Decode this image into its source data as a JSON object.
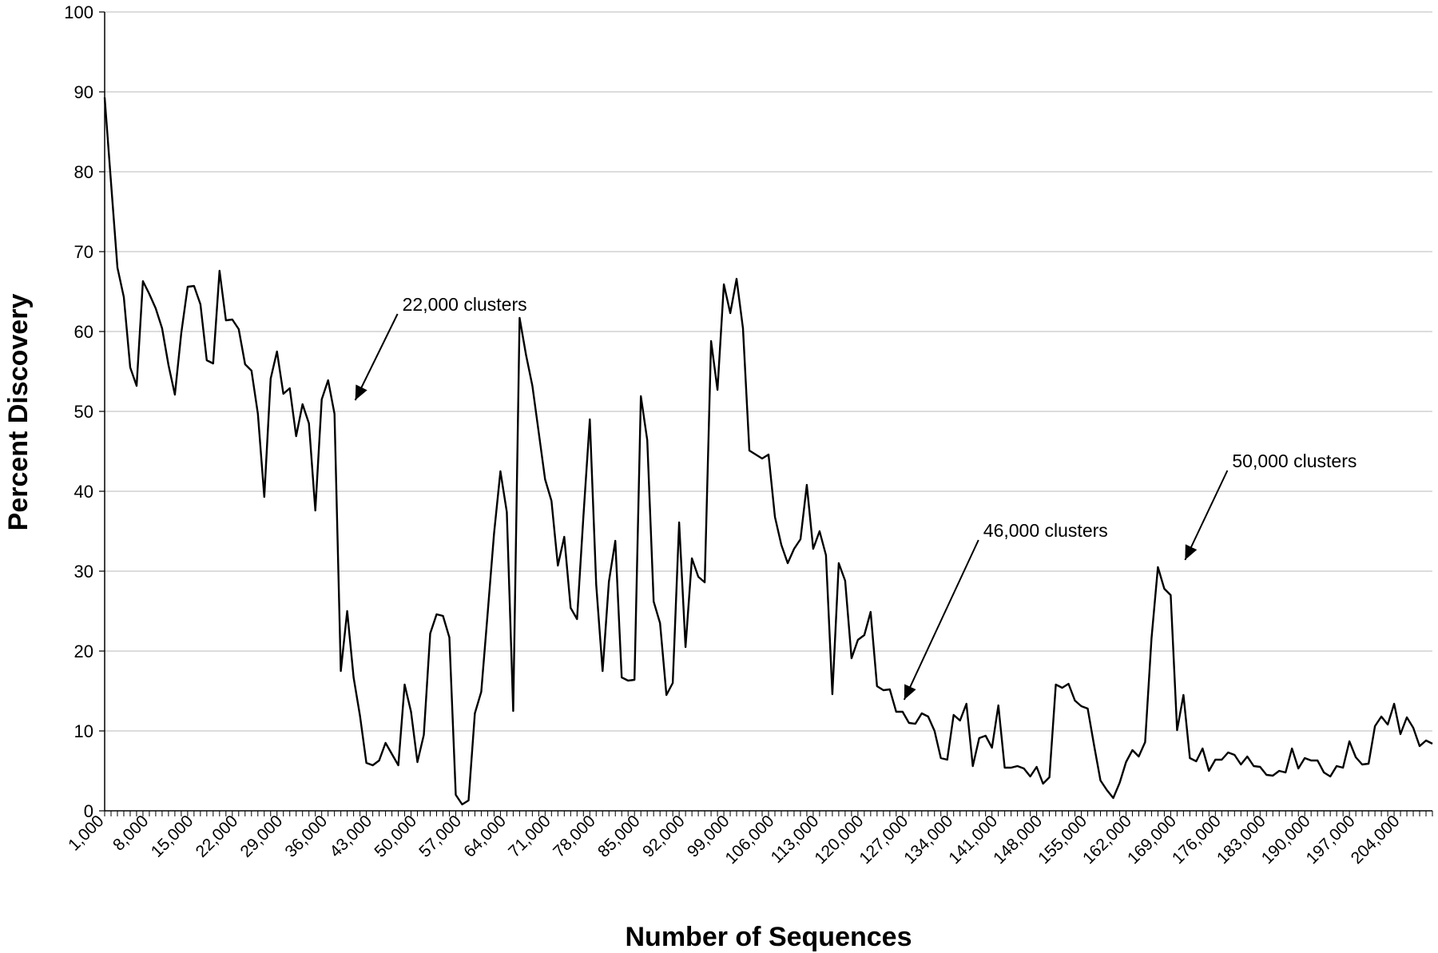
{
  "chart_data": {
    "type": "line",
    "xlabel": "Number of Sequences",
    "ylabel": "Percent Discovery",
    "ylim": [
      0,
      100
    ],
    "yticks": [
      0,
      10,
      20,
      30,
      40,
      50,
      60,
      70,
      80,
      90,
      100
    ],
    "x_start": 1000,
    "x_step": 1000,
    "x_count": 209,
    "xtick_labels": [
      "1,000",
      "8,000",
      "15,000",
      "22,000",
      "29,000",
      "36,000",
      "43,000",
      "50,000",
      "57,000",
      "64,000",
      "71,000",
      "78,000",
      "85,000",
      "92,000",
      "99,000",
      "106,000",
      "113,000",
      "120,000",
      "127,000",
      "134,000",
      "141,000",
      "148,000",
      "155,000",
      "162,000",
      "169,000",
      "176,000",
      "183,000",
      "190,000",
      "197,000",
      "204,000"
    ],
    "grid": "horizontal",
    "series": [
      {
        "values": [
          89.3,
          78.6,
          68,
          64.3,
          55.5,
          53.2,
          66.3,
          64.7,
          62.9,
          60.4,
          55.8,
          52.1,
          59.8,
          65.6,
          65.7,
          63.4,
          56.4,
          56,
          67.6,
          61.4,
          61.5,
          60.3,
          55.9,
          55.1,
          49.7,
          39.3,
          54.1,
          57.5,
          52.2,
          52.9,
          46.9,
          50.9,
          48.5,
          37.6,
          51.5,
          53.9,
          49.7,
          17.5,
          25,
          16.7,
          11.9,
          6,
          5.7,
          6.3,
          8.5,
          7.1,
          5.7,
          15.8,
          12.4,
          6.1,
          9.5,
          22.2,
          24.6,
          24.4,
          21.7,
          2,
          0.8,
          1.3,
          12.2,
          14.9,
          24.7,
          34.7,
          42.5,
          37.4,
          12.5,
          61.7,
          57.1,
          53.2,
          47.4,
          41.5,
          38.8,
          30.7,
          34.3,
          25.4,
          24,
          36.9,
          49,
          28.3,
          17.5,
          28.7,
          33.8,
          16.7,
          16.3,
          16.4,
          51.9,
          46.4,
          26.2,
          23.5,
          14.5,
          16,
          36.1,
          20.5,
          31.6,
          29.3,
          28.6,
          58.8,
          52.7,
          65.9,
          62.3,
          66.6,
          60.4,
          45.1,
          44.6,
          44.1,
          44.6,
          36.8,
          33.3,
          31,
          32.8,
          34,
          40.8,
          32.8,
          35,
          32,
          14.6,
          31,
          28.8,
          19.1,
          21.4,
          22,
          24.9,
          15.6,
          15.1,
          15.2,
          12.4,
          12.4,
          11,
          10.9,
          12.2,
          11.8,
          10,
          6.6,
          6.4,
          12,
          11.3,
          13.4,
          5.6,
          9.1,
          9.4,
          7.9,
          13.2,
          5.4,
          5.4,
          5.6,
          5.3,
          4.3,
          5.5,
          3.4,
          4.2,
          15.8,
          15.4,
          15.9,
          13.8,
          13.1,
          12.8,
          8.2,
          3.8,
          2.6,
          1.6,
          3.5,
          6.1,
          7.6,
          6.8,
          8.6,
          21.6,
          30.5,
          27.8,
          27,
          10.1,
          14.5,
          6.6,
          6.2,
          7.8,
          5,
          6.4,
          6.4,
          7.3,
          7,
          5.8,
          6.8,
          5.6,
          5.5,
          4.5,
          4.4,
          5,
          4.8,
          7.8,
          5.3,
          6.6,
          6.3,
          6.3,
          4.8,
          4.3,
          5.6,
          5.4,
          8.7,
          6.7,
          5.8,
          5.9,
          10.6,
          11.8,
          10.8,
          13.4,
          9.6,
          11.7,
          10.4,
          8.1,
          8.8,
          8.4
        ]
      }
    ],
    "annotations": [
      {
        "text": "22,000 clusters",
        "x": 40000,
        "y": 51
      },
      {
        "text": "46,000 clusters",
        "x": 126000,
        "y": 13.5
      },
      {
        "text": "50,000 clusters",
        "x": 170000,
        "y": 31
      }
    ]
  }
}
